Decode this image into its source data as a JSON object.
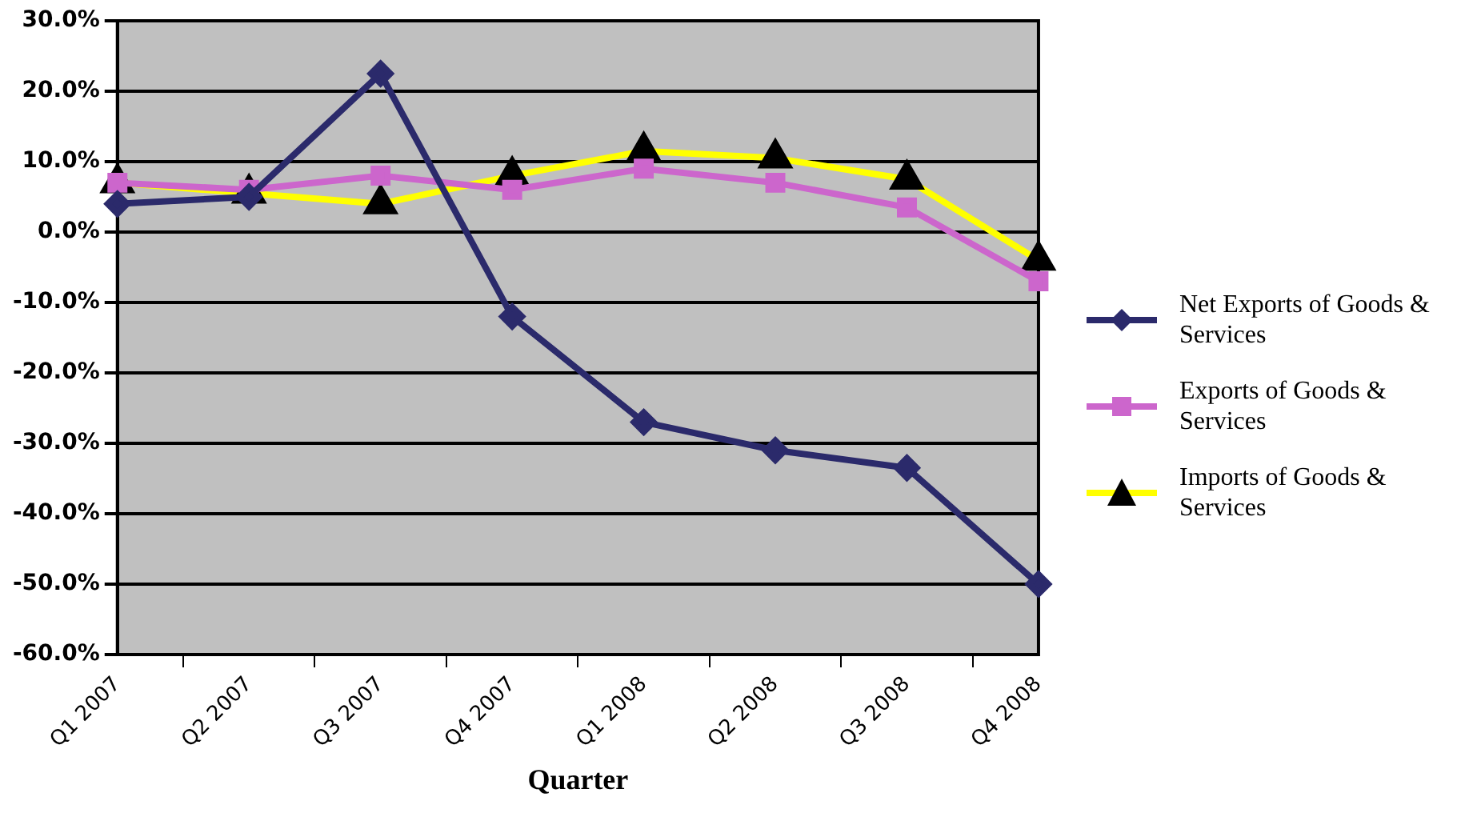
{
  "chart_data": {
    "type": "line",
    "xlabel": "Quarter",
    "categories": [
      "Q1 2007",
      "Q2 2007",
      "Q3 2007",
      "Q4 2007",
      "Q1 2008",
      "Q2 2008",
      "Q3 2008",
      "Q4 2008"
    ],
    "series": [
      {
        "name": "Net Exports of Goods & Services",
        "color": "#2b2a6b",
        "marker": "diamond",
        "values": [
          4,
          5,
          22.5,
          -12,
          -27,
          -31,
          -33.5,
          -50
        ]
      },
      {
        "name": "Exports of Goods & Services",
        "color": "#cc66cc",
        "marker": "square",
        "values": [
          7,
          6,
          8,
          6,
          9,
          7,
          3.5,
          -7
        ]
      },
      {
        "name": "Imports of Goods & Services",
        "color": "#ffff00",
        "marker": "triangle",
        "values": [
          7,
          5.5,
          4,
          8,
          11.5,
          10.5,
          7.5,
          -4
        ]
      }
    ],
    "ylim": [
      -60,
      30
    ],
    "yticks": [
      {
        "value": -60,
        "label": "-60.0%"
      },
      {
        "value": -50,
        "label": "-50.0%"
      },
      {
        "value": -40,
        "label": "-40.0%"
      },
      {
        "value": -30,
        "label": "-30.0%"
      },
      {
        "value": -20,
        "label": "-20.0%"
      },
      {
        "value": -10,
        "label": "-10.0%"
      },
      {
        "value": 0,
        "label": "0.0%"
      },
      {
        "value": 10,
        "label": "10.0%"
      },
      {
        "value": 20,
        "label": "20.0%"
      },
      {
        "value": 30,
        "label": "30.0%"
      }
    ],
    "grid": "y",
    "legend": "right"
  }
}
